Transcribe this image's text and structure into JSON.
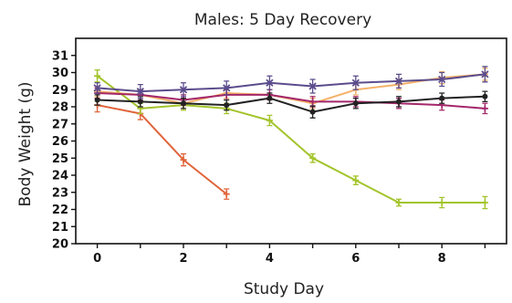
{
  "chart_data": {
    "type": "line",
    "title": "Males: 5 Day Recovery",
    "xlabel": "Study Day",
    "ylabel": "Body Weight (g)",
    "xlim": [
      -0.5,
      9.5
    ],
    "ylim": [
      20,
      32
    ],
    "x_ticks": [
      0,
      2,
      4,
      6,
      8
    ],
    "y_ticks": [
      20,
      21,
      22,
      23,
      24,
      25,
      26,
      27,
      28,
      29,
      30,
      31
    ],
    "grid": false,
    "legend": "none",
    "series": [
      {
        "color": "#e0643a",
        "marker": "plus",
        "x": [
          0,
          1,
          2,
          3
        ],
        "y": [
          28.1,
          27.6,
          24.9,
          22.9
        ],
        "err": [
          0.4,
          0.35,
          0.35,
          0.3
        ]
      },
      {
        "color": "#a3c42b",
        "marker": "plus",
        "x": [
          0,
          1,
          2,
          3,
          4,
          5,
          6,
          7,
          8,
          9
        ],
        "y": [
          29.8,
          27.9,
          28.1,
          27.9,
          27.2,
          25.0,
          23.7,
          22.4,
          22.4,
          22.4
        ],
        "err": [
          0.35,
          0.3,
          0.3,
          0.3,
          0.3,
          0.25,
          0.25,
          0.2,
          0.3,
          0.35
        ]
      },
      {
        "color": "#f5b26b",
        "marker": "plus",
        "x": [
          0,
          1,
          2,
          3,
          4,
          5,
          6,
          7,
          8,
          9
        ],
        "y": [
          28.9,
          28.7,
          28.2,
          28.8,
          28.7,
          28.2,
          29.0,
          29.3,
          29.7,
          29.9
        ],
        "err": [
          0.3,
          0.3,
          0.3,
          0.3,
          0.3,
          0.3,
          0.3,
          0.3,
          0.35,
          0.35
        ]
      },
      {
        "color": "#a3276a",
        "marker": "plus",
        "x": [
          0,
          1,
          2,
          3,
          4,
          5,
          6,
          7,
          8,
          9
        ],
        "y": [
          28.8,
          28.7,
          28.4,
          28.7,
          28.7,
          28.3,
          28.3,
          28.2,
          28.1,
          27.9
        ],
        "err": [
          0.3,
          0.3,
          0.3,
          0.3,
          0.3,
          0.3,
          0.3,
          0.3,
          0.3,
          0.3
        ]
      },
      {
        "color": "#222222",
        "marker": "circle",
        "x": [
          0,
          1,
          2,
          3,
          4,
          5,
          6,
          7,
          8,
          9
        ],
        "y": [
          28.4,
          28.3,
          28.2,
          28.1,
          28.5,
          27.7,
          28.2,
          28.3,
          28.5,
          28.6
        ],
        "err": [
          0.3,
          0.3,
          0.3,
          0.3,
          0.3,
          0.35,
          0.3,
          0.3,
          0.3,
          0.3
        ]
      },
      {
        "color": "#5b4c8c",
        "marker": "x",
        "x": [
          0,
          1,
          2,
          3,
          4,
          5,
          6,
          7,
          8,
          9
        ],
        "y": [
          29.1,
          28.9,
          29.0,
          29.1,
          29.4,
          29.2,
          29.4,
          29.5,
          29.6,
          29.9
        ],
        "err": [
          0.3,
          0.4,
          0.4,
          0.4,
          0.4,
          0.4,
          0.4,
          0.4,
          0.4,
          0.45
        ]
      }
    ]
  }
}
